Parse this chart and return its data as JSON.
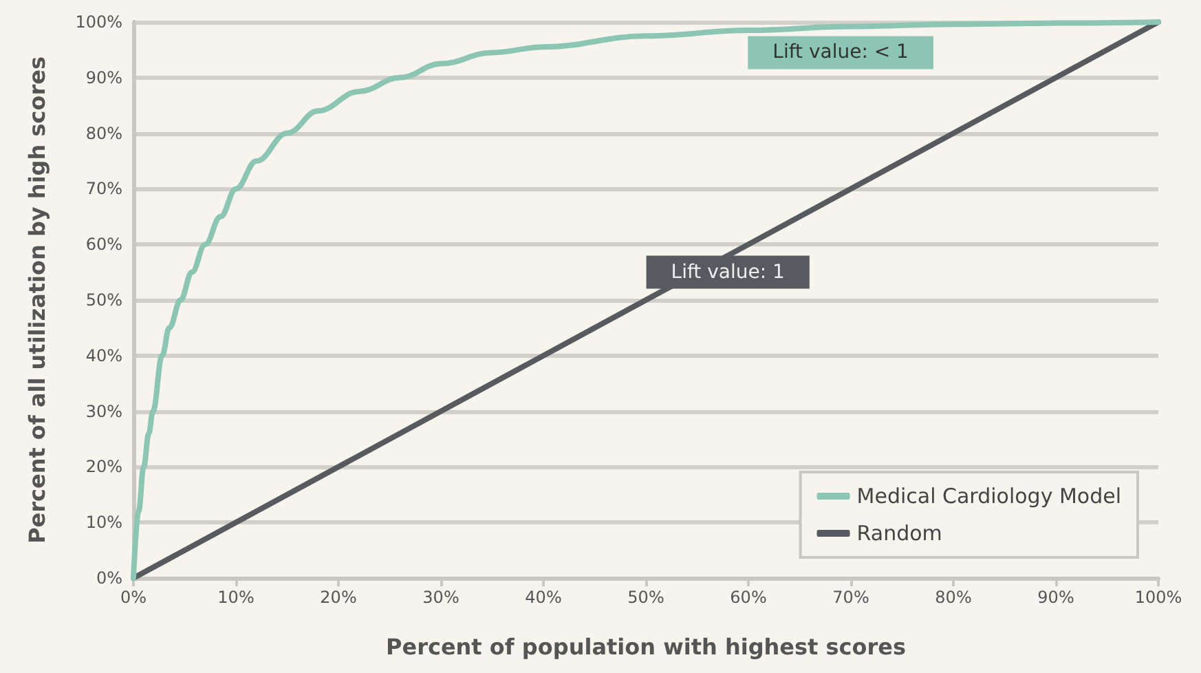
{
  "chart_data": {
    "type": "line",
    "xlabel": "Percent of population with highest scores",
    "ylabel": "Percent of all utilization by high scores",
    "series": [
      {
        "name": "Medical Cardiology Model",
        "color": "#8cc5b4",
        "x": [
          0,
          0.5,
          1,
          1.5,
          1.9,
          2.8,
          3.5,
          4.6,
          5.7,
          7,
          8.5,
          10,
          12,
          15,
          18,
          22,
          26,
          30,
          35,
          40,
          50,
          60,
          70,
          80,
          90,
          100
        ],
        "values": [
          0,
          12,
          20,
          26,
          30,
          40,
          45,
          50,
          55,
          60,
          65,
          70,
          75,
          80,
          84,
          87.5,
          90,
          92.5,
          94.5,
          95.5,
          97.5,
          98.5,
          99.2,
          99.6,
          99.8,
          100
        ]
      },
      {
        "name": "Random",
        "color": "#575b60",
        "x": [
          0,
          100
        ],
        "values": [
          0,
          100
        ]
      }
    ],
    "xlim": [
      0,
      100
    ],
    "xticks": [
      {
        "value": 0,
        "label": "0%"
      },
      {
        "value": 10,
        "label": "10%"
      },
      {
        "value": 20,
        "label": "20%"
      },
      {
        "value": 30,
        "label": "30%"
      },
      {
        "value": 40,
        "label": "40%"
      },
      {
        "value": 50,
        "label": "50%"
      },
      {
        "value": 60,
        "label": "60%"
      },
      {
        "value": 70,
        "label": "70%"
      },
      {
        "value": 80,
        "label": "80%"
      },
      {
        "value": 90,
        "label": "90%"
      },
      {
        "value": 100,
        "label": "100%"
      }
    ],
    "ylim": [
      0,
      100
    ],
    "yticks": [
      {
        "value": 0,
        "label": "0%"
      },
      {
        "value": 10,
        "label": "10%"
      },
      {
        "value": 20,
        "label": "20%"
      },
      {
        "value": 30,
        "label": "30%"
      },
      {
        "value": 40,
        "label": "40%"
      },
      {
        "value": 50,
        "label": "50%"
      },
      {
        "value": 60,
        "label": "60%"
      },
      {
        "value": 70,
        "label": "70%"
      },
      {
        "value": 80,
        "label": "80%"
      },
      {
        "value": 90,
        "label": "90%"
      },
      {
        "value": 100,
        "label": "100%"
      }
    ],
    "annotations": [
      "Lift value: < 1",
      "Lift value: 1"
    ],
    "grid": "y",
    "legend": "bottom right",
    "marker": "none",
    "line_style": "solid"
  }
}
